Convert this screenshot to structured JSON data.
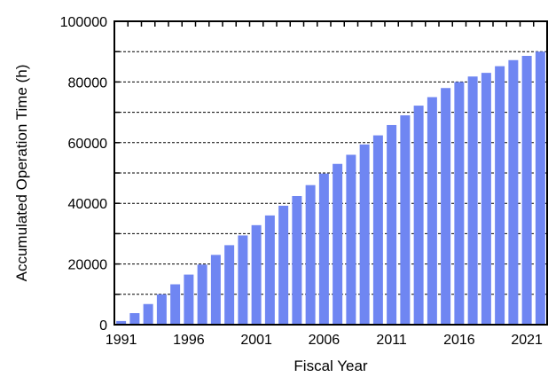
{
  "chart_data": {
    "type": "bar",
    "title": "",
    "xlabel": "Fiscal Year",
    "ylabel": "Accumulated Operation Time (h)",
    "ylim": [
      0,
      100000
    ],
    "yticks": [
      0,
      20000,
      40000,
      60000,
      80000,
      100000
    ],
    "ytick_labels": [
      "0",
      "20000",
      "40000",
      "60000",
      "80000",
      "100000"
    ],
    "xtick_labels": [
      "1991",
      "1996",
      "2001",
      "2006",
      "2011",
      "2016",
      "2021"
    ],
    "grid": "horizontal dashed",
    "bar_color": "#6f86f2",
    "categories": [
      1991,
      1992,
      1993,
      1994,
      1995,
      1996,
      1997,
      1998,
      1999,
      2000,
      2001,
      2002,
      2003,
      2004,
      2005,
      2006,
      2007,
      2008,
      2009,
      2010,
      2011,
      2012,
      2013,
      2014,
      2015,
      2016,
      2017,
      2018,
      2019,
      2020,
      2021,
      2022
    ],
    "values": [
      1200,
      3800,
      6800,
      10000,
      13300,
      16500,
      19800,
      23000,
      26200,
      29400,
      32800,
      36000,
      39200,
      42400,
      46000,
      49800,
      53000,
      56000,
      59400,
      62400,
      65800,
      69000,
      72200,
      75000,
      78000,
      80000,
      81800,
      83000,
      85200,
      87200,
      88600,
      90000
    ]
  }
}
